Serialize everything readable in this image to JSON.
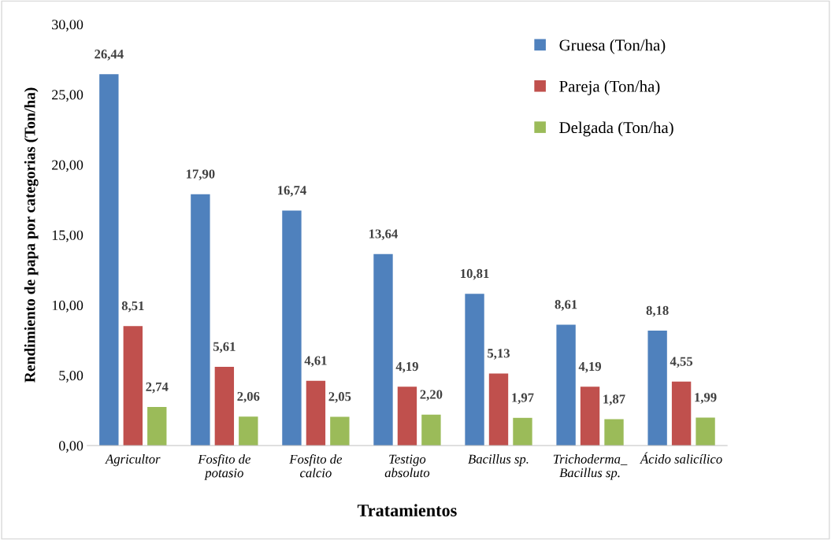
{
  "chart_data": {
    "type": "bar",
    "xlabel": "Tratamientos",
    "ylabel": "Rendimiento de papa por categorias (Ton/ha)",
    "categories": [
      "Agricultor",
      "Fosfito de\npotasio",
      "Fosfito de\ncalcio",
      "Testigo\nabsoluto",
      "Bacillus sp.",
      "Trichoderma_\nBacillus sp.",
      "Ácido salicílico"
    ],
    "series": [
      {
        "name": "Gruesa (Ton/ha)",
        "color": "#4f81bd",
        "values": [
          26.44,
          17.9,
          16.74,
          13.64,
          10.81,
          8.61,
          8.18
        ],
        "value_labels": [
          "26,44",
          "17,90",
          "16,74",
          "13,64",
          "10,81",
          "8,61",
          "8,18"
        ]
      },
      {
        "name": "Pareja (Ton/ha)",
        "color": "#c0504d",
        "values": [
          8.51,
          5.61,
          4.61,
          4.19,
          5.13,
          4.19,
          4.55
        ],
        "value_labels": [
          "8,51",
          "5,61",
          "4,61",
          "4,19",
          "5,13",
          "4,19",
          "4,55"
        ]
      },
      {
        "name": "Delgada (Ton/ha)",
        "color": "#9bbb59",
        "values": [
          2.74,
          2.06,
          2.05,
          2.2,
          1.97,
          1.87,
          1.99
        ],
        "value_labels": [
          "2,74",
          "2,06",
          "2,05",
          "2,20",
          "1,97",
          "1,87",
          "1,99"
        ]
      }
    ],
    "ylim": [
      0,
      30
    ],
    "yticks": [
      {
        "value": 0,
        "label": "0,00"
      },
      {
        "value": 5,
        "label": "5,00"
      },
      {
        "value": 10,
        "label": "10,00"
      },
      {
        "value": 15,
        "label": "15,00"
      },
      {
        "value": 20,
        "label": "20,00"
      },
      {
        "value": 25,
        "label": "25,00"
      },
      {
        "value": 30,
        "label": "30,00"
      }
    ],
    "grid": false,
    "legend": "top right"
  }
}
